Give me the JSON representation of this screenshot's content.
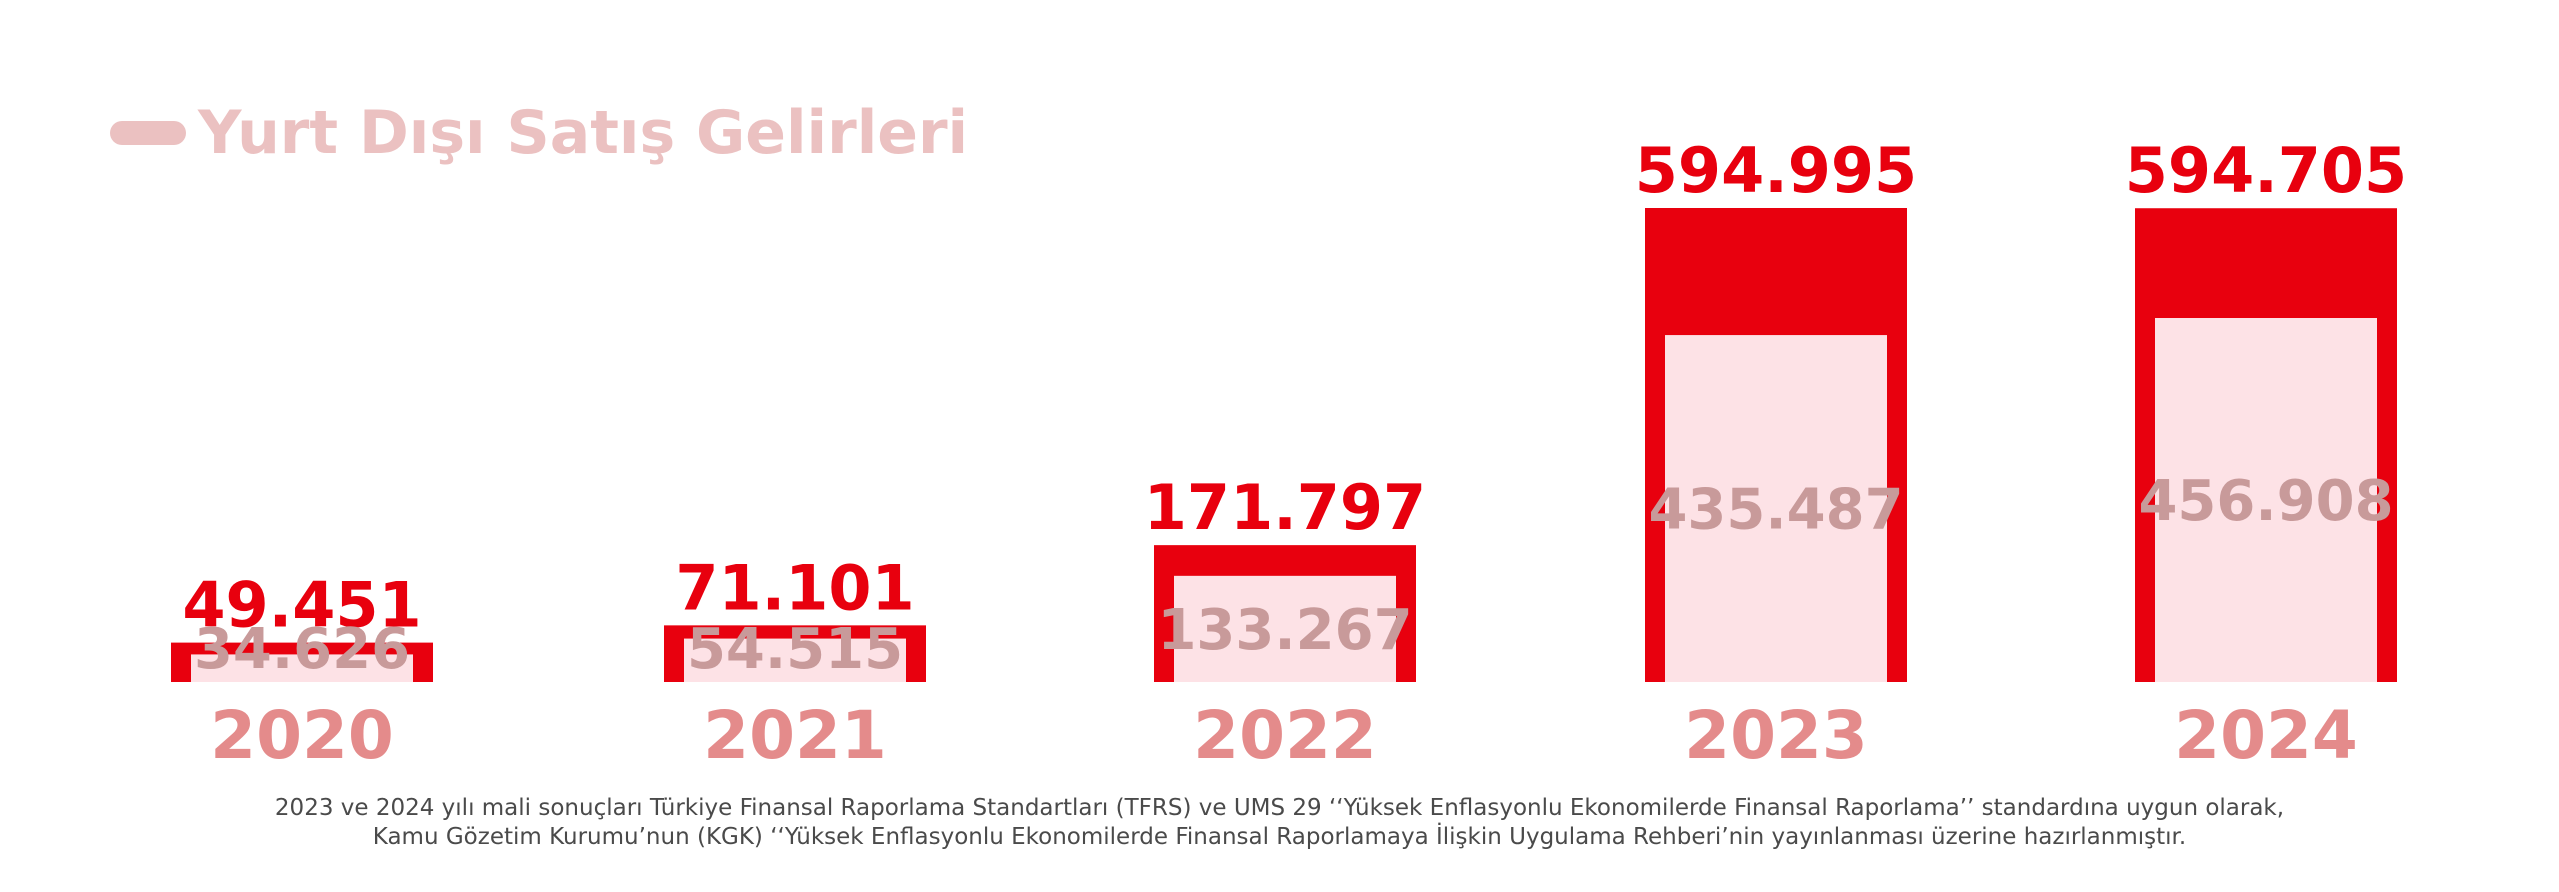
{
  "title": "Yurt Dışı Satış Gelirleri",
  "footnote": {
    "line1": "2023 ve 2024 yılı mali sonuçları Türkiye Finansal Raporlama Standartları (TFRS) ve UMS 29 ‘‘Yüksek Enflasyonlu Ekonomilerde Finansal Raporlama’’ standardına uygun olarak,",
    "line2": "Kamu Gözetim Kurumu’nun (KGK) ‘‘Yüksek Enflasyonlu Ekonomilerde Finansal Raporlamaya İlişkin Uygulama Rehberi’nin yayınlanması üzerine hazırlanmıştır."
  },
  "colors": {
    "outer": "#e8000e",
    "inner": "#fde2e6",
    "inner_text": "#c89a9a",
    "year_text": "#e48b8b",
    "title": "#ebc1c1"
  },
  "chart_data": {
    "type": "bar",
    "title": "Yurt Dışı Satış Gelirleri",
    "categories": [
      "2020",
      "2021",
      "2022",
      "2023",
      "2024"
    ],
    "series": [
      {
        "values": [
          49451,
          71101,
          171797,
          594995,
          594705
        ],
        "labels": [
          "49.451",
          "71.101",
          "171.797",
          "594.995",
          "594.705"
        ]
      },
      {
        "values": [
          34626,
          54515,
          133267,
          435487,
          456908
        ],
        "labels": [
          "34.626",
          "54.515",
          "133.267",
          "435.487",
          "456.908"
        ]
      }
    ],
    "xlabel": "",
    "ylabel": "",
    "grid": false
  }
}
